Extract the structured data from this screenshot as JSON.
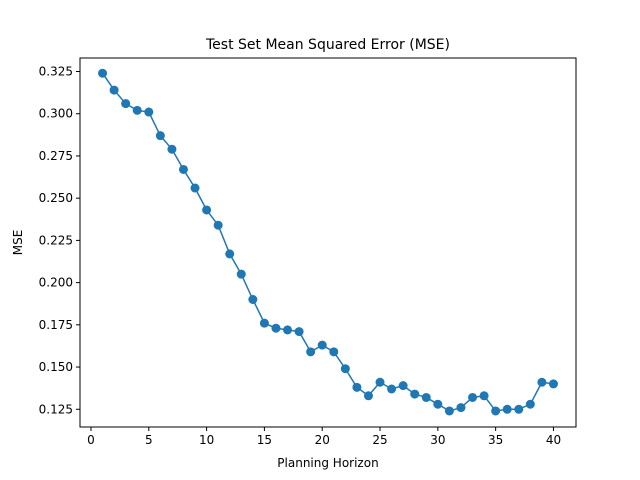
{
  "chart_data": {
    "type": "line",
    "title": "Test Set Mean Squared Error (MSE)",
    "xlabel": "Planning Horizon",
    "ylabel": "MSE",
    "xlim": [
      -0.95,
      41.95
    ],
    "ylim": [
      0.1145,
      0.333
    ],
    "xticks": [
      0,
      5,
      10,
      15,
      20,
      25,
      30,
      35,
      40
    ],
    "yticks": [
      0.125,
      0.15,
      0.175,
      0.2,
      0.225,
      0.25,
      0.275,
      0.3,
      0.325
    ],
    "xtick_labels": [
      "0",
      "5",
      "10",
      "15",
      "20",
      "25",
      "30",
      "35",
      "40"
    ],
    "ytick_labels": [
      "0.125",
      "0.150",
      "0.175",
      "0.200",
      "0.225",
      "0.250",
      "0.275",
      "0.300",
      "0.325"
    ],
    "grid": false,
    "markers": true,
    "color": "#1f77b4",
    "x": [
      1,
      2,
      3,
      4,
      5,
      6,
      7,
      8,
      9,
      10,
      11,
      12,
      13,
      14,
      15,
      16,
      17,
      18,
      19,
      20,
      21,
      22,
      23,
      24,
      25,
      26,
      27,
      28,
      29,
      30,
      31,
      32,
      33,
      34,
      35,
      36,
      37,
      38,
      39,
      40
    ],
    "values": [
      0.324,
      0.314,
      0.306,
      0.302,
      0.301,
      0.287,
      0.279,
      0.267,
      0.256,
      0.243,
      0.234,
      0.217,
      0.205,
      0.19,
      0.176,
      0.173,
      0.172,
      0.171,
      0.159,
      0.163,
      0.159,
      0.149,
      0.138,
      0.133,
      0.141,
      0.137,
      0.139,
      0.134,
      0.132,
      0.128,
      0.124,
      0.126,
      0.132,
      0.133,
      0.124,
      0.125,
      0.125,
      0.128,
      0.141,
      0.14
    ]
  }
}
